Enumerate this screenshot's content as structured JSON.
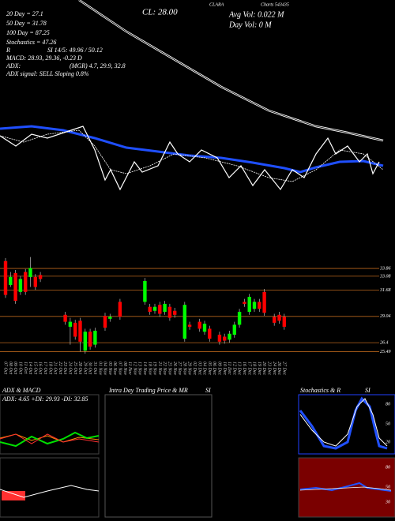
{
  "header": {
    "symbol": "Charts 543435",
    "name": "CLARA",
    "close": "CL: 28.00",
    "avg_vol": "Avg Vol: 0.022 M",
    "day_vol": "Day Vol: 0  M"
  },
  "indicators": [
    "20 Day = 27.1",
    "50 Day = 31.78",
    "100 Day = 87.25",
    "Stochastics = 47.26",
    "R",
    "SI 14/5: 49.96 / 50.12",
    "MACD: 28.93, 29.36, -0.23 D",
    "ADX:",
    "(MGR) 4.7, 29.9, 32.8",
    "ADX  signal: SELL Sloping 0.8%"
  ],
  "chart_data": {
    "type": "candlestick",
    "categories": [
      "07 Oct",
      "08 Oct",
      "09 Oct",
      "10 Oct",
      "11 Oct",
      "14 Oct",
      "15 Oct",
      "16 Oct",
      "17 Oct",
      "18 Oct",
      "21 Oct",
      "22 Oct",
      "23 Oct",
      "24 Oct",
      "25 Oct",
      "28 Oct",
      "29 Oct",
      "30 Oct",
      "31 Oct",
      "01 Nov",
      "04 Nov",
      "05 Nov",
      "06 Nov",
      "07 Nov",
      "08 Nov",
      "11 Nov",
      "12 Nov",
      "13 Nov",
      "14 Nov",
      "18 Nov",
      "19 Nov",
      "21 Nov",
      "22 Nov",
      "25 Nov",
      "26 Nov",
      "27 Nov",
      "28 Nov",
      "29 Nov",
      "02 Dec",
      "03 Dec",
      "04 Dec",
      "05 Dec",
      "06 Dec",
      "09 Dec",
      "10 Dec",
      "11 Dec",
      "12 Dec",
      "13 Dec",
      "16 Dec",
      "17 Dec",
      "18 Dec",
      "19 Dec",
      "20 Dec",
      "23 Dec",
      "24 Dec",
      "26 Dec",
      "27 Dec"
    ],
    "open": [
      34.6,
      32.2,
      33.4,
      31.5,
      33.5,
      33.0,
      33.0,
      33.2,
      null,
      null,
      null,
      null,
      29.2,
      28.0,
      28.4,
      28.6,
      25.6,
      27.5,
      26.2,
      null,
      29.1,
      28.8,
      null,
      30.5,
      null,
      null,
      null,
      null,
      30.5,
      30.0,
      29.6,
      30.2,
      29.5,
      30.0,
      29.6,
      null,
      26.8,
      28.2,
      null,
      28.5,
      27.5,
      27.8,
      null,
      27.2,
      27.0,
      26.7,
      27.2,
      28.2,
      30.5,
      29.5,
      29.8,
      30.5,
      31.5,
      null,
      29.0,
      29.2,
      29.0
    ],
    "high": [
      34.9,
      33.5,
      33.7,
      33.1,
      33.8,
      35.0,
      33.3,
      33.5,
      null,
      null,
      null,
      null,
      29.5,
      28.9,
      28.7,
      28.9,
      27.8,
      27.8,
      27.9,
      null,
      29.4,
      29.3,
      null,
      30.8,
      null,
      null,
      null,
      null,
      32.9,
      30.3,
      30.3,
      30.5,
      30.6,
      30.3,
      29.9,
      null,
      30.5,
      28.5,
      null,
      28.8,
      28.6,
      28.1,
      null,
      27.5,
      27.3,
      27.6,
      28.5,
      29.8,
      30.8,
      31.3,
      30.8,
      30.8,
      31.8,
      null,
      29.3,
      29.5,
      29.3
    ],
    "low": [
      30.9,
      32.0,
      30.3,
      31.2,
      31.2,
      32.0,
      31.7,
      32.5,
      null,
      null,
      null,
      null,
      28.2,
      26.2,
      26.7,
      25.5,
      25.3,
      25.7,
      25.9,
      null,
      27.6,
      28.5,
      null,
      28.7,
      null,
      null,
      null,
      null,
      30.2,
      29.2,
      29.3,
      29.0,
      29.2,
      28.6,
      28.9,
      null,
      26.5,
      27.7,
      null,
      27.5,
      27.2,
      26.5,
      null,
      26.2,
      26.3,
      26.4,
      26.9,
      27.9,
      30.0,
      29.2,
      29.5,
      29.5,
      29.1,
      null,
      28.1,
      28.3,
      27.7
    ],
    "close": [
      31.2,
      33.0,
      30.6,
      32.8,
      31.5,
      33.9,
      32.0,
      32.8,
      null,
      null,
      null,
      null,
      28.5,
      28.5,
      27.0,
      26.5,
      27.5,
      26.0,
      27.6,
      null,
      27.9,
      29.0,
      null,
      29.0,
      null,
      null,
      null,
      null,
      32.6,
      29.5,
      30.0,
      29.3,
      30.3,
      28.9,
      29.2,
      null,
      30.2,
      28.0,
      null,
      27.8,
      28.3,
      26.8,
      null,
      26.5,
      26.6,
      27.3,
      28.2,
      29.5,
      30.3,
      31.0,
      30.5,
      29.8,
      29.4,
      null,
      28.4,
      28.6,
      28.0
    ],
    "up_color": "#00ff00",
    "down_color": "#ff0000",
    "ylim": [
      24.9,
      35.45
    ],
    "yticks": [
      33.86,
      33.08,
      31.68,
      29.04,
      26.4,
      25.49
    ],
    "grid": true,
    "grid_color": "#b8651c"
  },
  "panels": {
    "adx": {
      "title": "ADX  & MACD",
      "info": "ADX: 4.65  +DI: 29.93  -DI: 32.85"
    },
    "intraday": {
      "title": "Intra Day Trading Price  & MR",
      "title2": "SI"
    },
    "stoch": {
      "title": "Stochastics & R",
      "title2": "SI",
      "ticks": [
        "80",
        "50",
        "20"
      ]
    },
    "rsi": {
      "ticks": [
        "80",
        "50",
        "30"
      ]
    }
  }
}
